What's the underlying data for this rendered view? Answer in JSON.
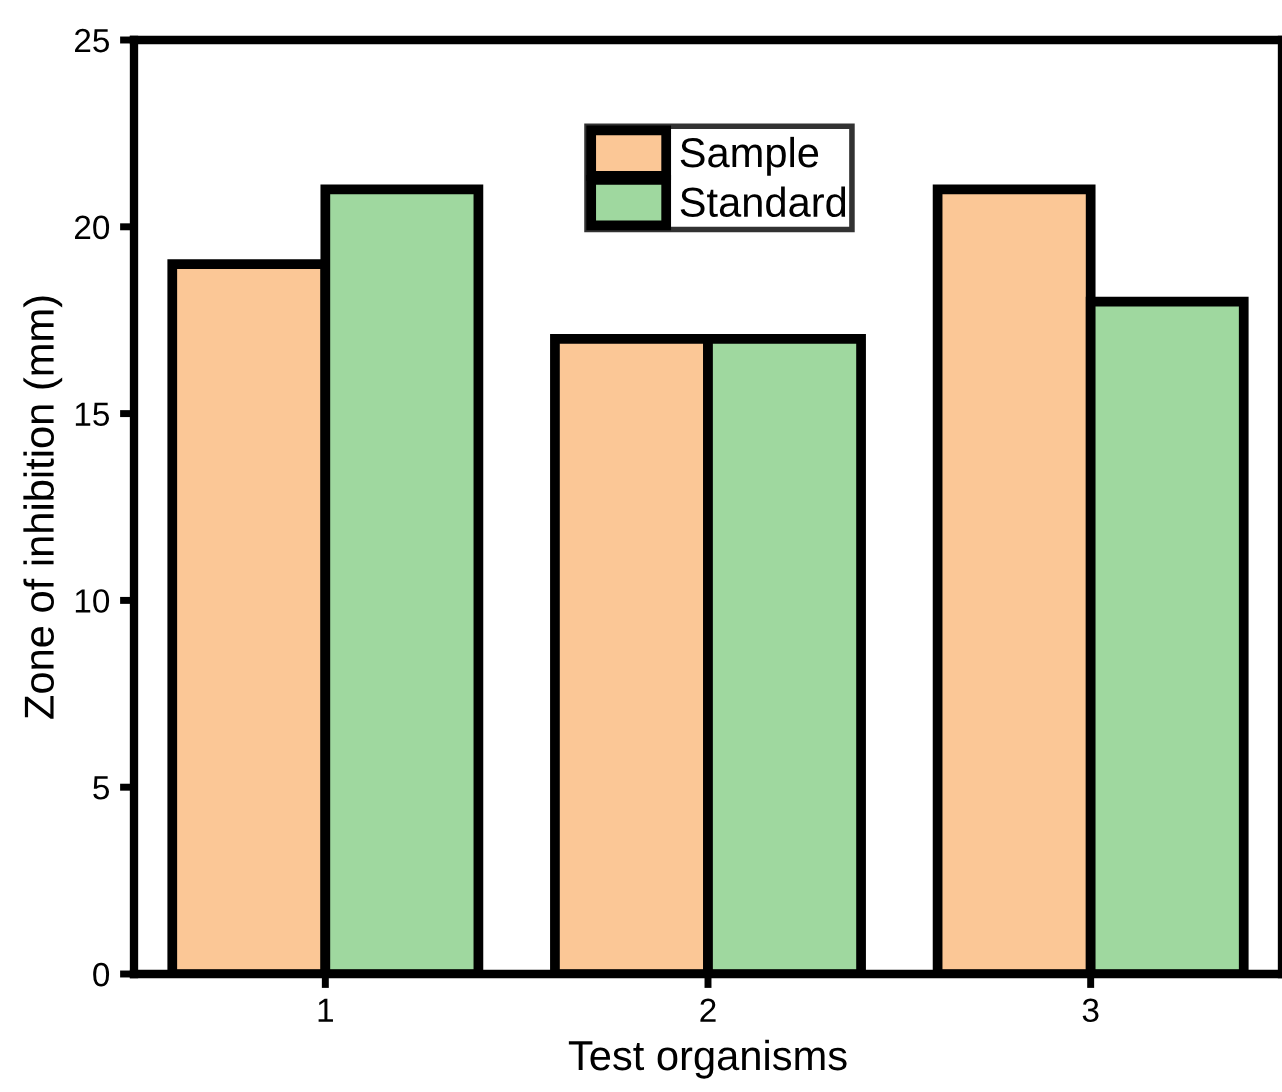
{
  "chart_data": {
    "type": "bar",
    "xlabel": "Test organisms",
    "ylabel": "Zone of inhibition (mm)",
    "categories": [
      "1",
      "2",
      "3"
    ],
    "series": [
      {
        "name": "Sample",
        "color": "#fbc796",
        "values": [
          19,
          17,
          21
        ]
      },
      {
        "name": "Standard",
        "color": "#9fd89f",
        "values": [
          21,
          17,
          18
        ]
      }
    ],
    "ylim": [
      0,
      25
    ],
    "yticks": [
      0,
      5,
      10,
      15,
      20,
      25
    ],
    "grid": false,
    "legend": "top"
  }
}
